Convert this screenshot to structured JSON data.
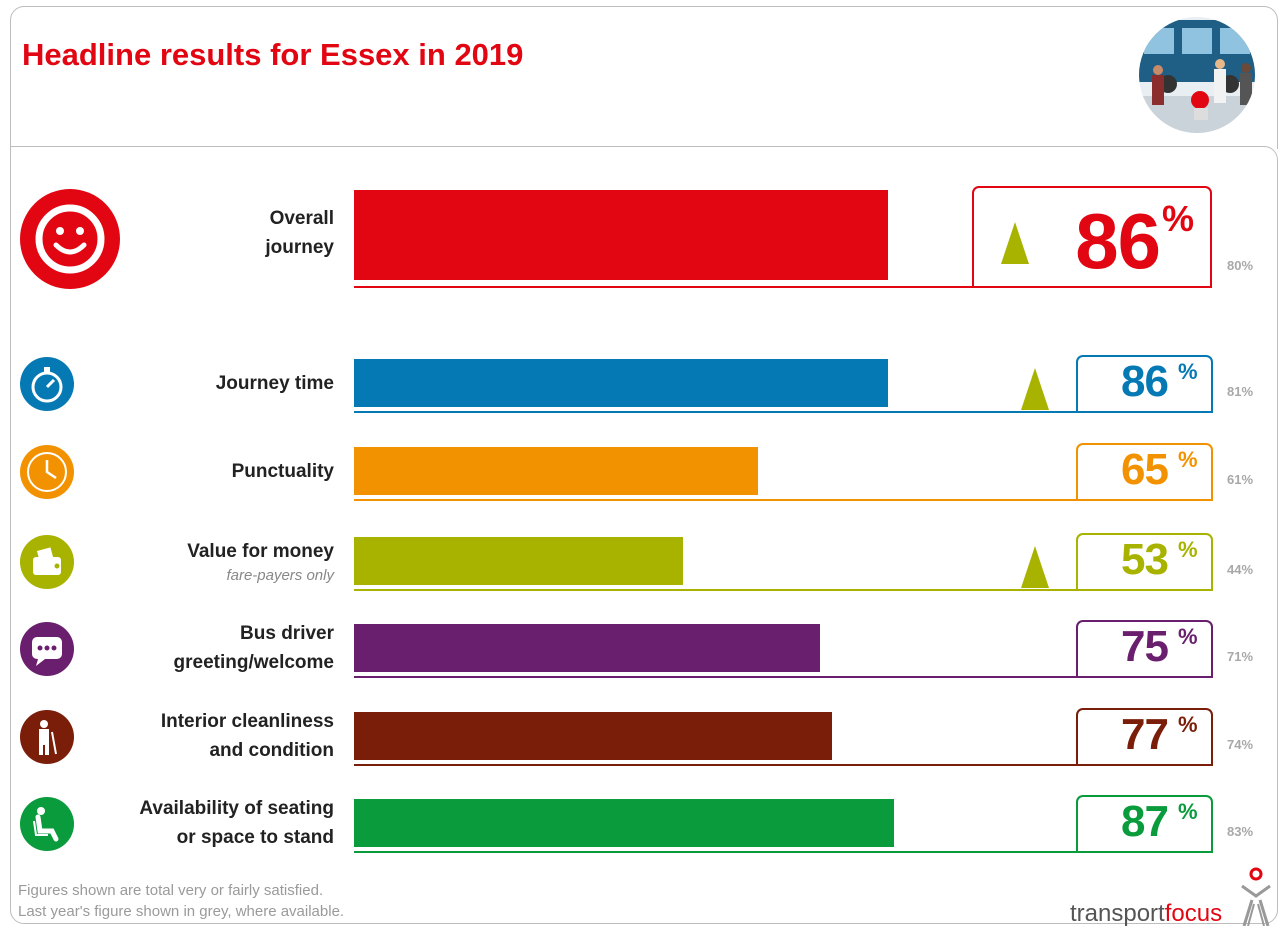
{
  "title": "Headline results for Essex in 2019",
  "chart_data": {
    "type": "bar",
    "orientation": "horizontal",
    "title": "Headline results for Essex in 2019",
    "categories": [
      "Overall journey",
      "Journey time",
      "Punctuality",
      "Value for money",
      "Bus driver greeting/welcome",
      "Interior cleanliness and condition",
      "Availability of seating or space to stand"
    ],
    "series": [
      {
        "name": "2019",
        "values": [
          86,
          86,
          65,
          53,
          75,
          77,
          87
        ]
      },
      {
        "name": "Last year",
        "values": [
          80,
          81,
          61,
          44,
          71,
          74,
          83
        ]
      }
    ],
    "xlim": [
      0,
      100
    ],
    "unit": "%",
    "rows": [
      {
        "label_lines": [
          "Overall",
          "journey"
        ],
        "sub": "",
        "value": 86,
        "value_text": "86",
        "prev_text": "80%",
        "color": "#e20612",
        "up": true,
        "icon": "smiley-icon"
      },
      {
        "label_lines": [
          "Journey time"
        ],
        "sub": "",
        "value": 86,
        "value_text": "86",
        "prev_text": "81%",
        "color": "#0579b3",
        "up": true,
        "icon": "stopwatch-icon"
      },
      {
        "label_lines": [
          "Punctuality"
        ],
        "sub": "",
        "value": 65,
        "value_text": "65",
        "prev_text": "61%",
        "color": "#f39200",
        "up": false,
        "icon": "clock-icon"
      },
      {
        "label_lines": [
          "Value for money"
        ],
        "sub": "fare-payers only",
        "value": 53,
        "value_text": "53",
        "prev_text": "44%",
        "color": "#a8b300",
        "up": true,
        "icon": "wallet-icon"
      },
      {
        "label_lines": [
          "Bus driver",
          "greeting/welcome"
        ],
        "sub": "",
        "value": 75,
        "value_text": "75",
        "prev_text": "71%",
        "color": "#6a1f6e",
        "up": false,
        "icon": "speech-bubble-icon"
      },
      {
        "label_lines": [
          "Interior cleanliness",
          "and condition"
        ],
        "sub": "",
        "value": 77,
        "value_text": "77",
        "prev_text": "74%",
        "color": "#7a1e0a",
        "up": false,
        "icon": "cleaner-icon"
      },
      {
        "label_lines": [
          "Availability of seating",
          "or space to stand"
        ],
        "sub": "",
        "value": 87,
        "value_text": "87",
        "prev_text": "83%",
        "color": "#0a9b3c",
        "up": false,
        "icon": "seated-person-icon"
      }
    ]
  },
  "percent_sign": "%",
  "footnote": {
    "line1": "Figures shown are total very or fairly satisfied.",
    "line2": "Last year's figure shown in grey, where available."
  },
  "brand": {
    "part1": "transport",
    "part2": "focus"
  }
}
